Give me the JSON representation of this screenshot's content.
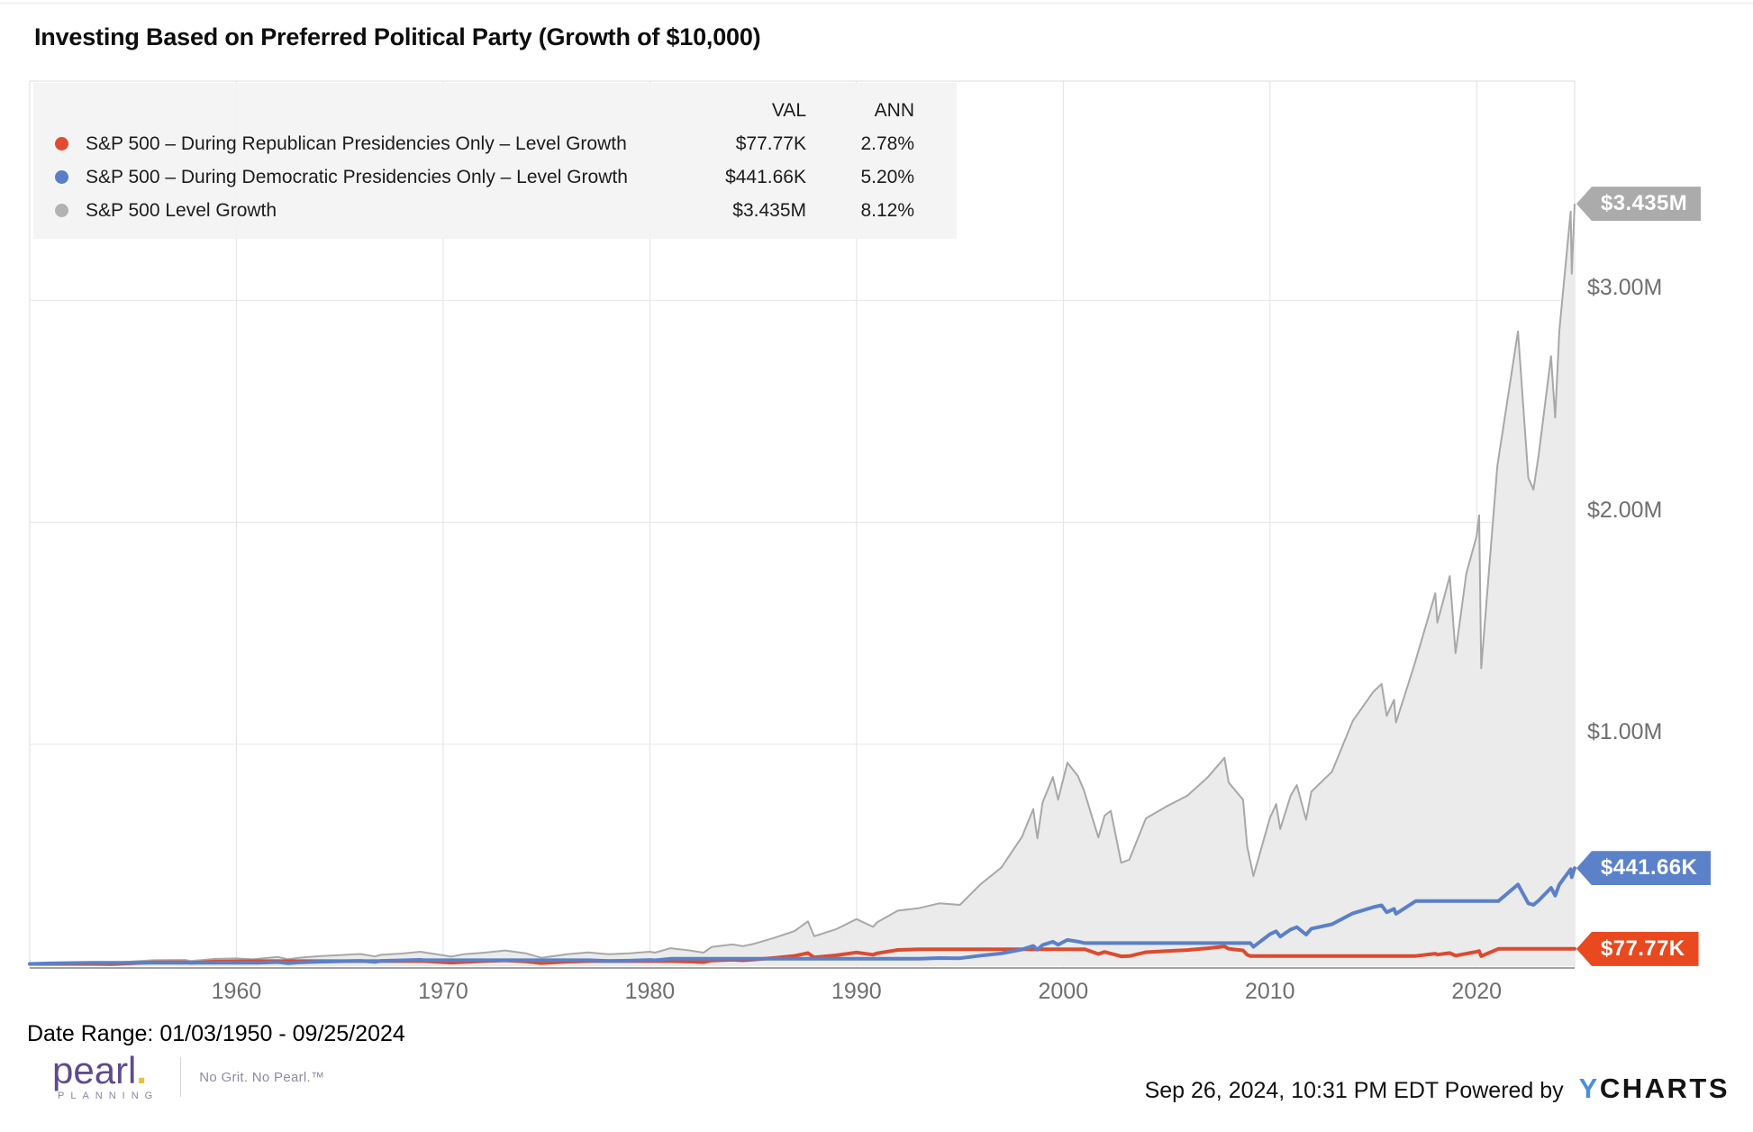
{
  "title": "Investing Based on Preferred Political Party (Growth of $10,000)",
  "legend": {
    "val_header": "VAL",
    "ann_header": "ANN",
    "rows": [
      {
        "id": "republican",
        "label": "S&P 500 – During Republican Presidencies Only – Level Growth",
        "val": "$77.77K",
        "ann": "2.78%",
        "color": "#e14b31"
      },
      {
        "id": "democratic",
        "label": "S&P 500 – During Democratic Presidencies Only – Level Growth",
        "val": "$441.66K",
        "ann": "5.20%",
        "color": "#5b7fc6"
      },
      {
        "id": "sp500_level",
        "label": "S&P 500 Level Growth",
        "val": "$3.435M",
        "ann": "8.12%",
        "color": "#b2b2b2"
      }
    ]
  },
  "chart_data": {
    "type": "area",
    "title": "Investing Based on Preferred Political Party (Growth of $10,000)",
    "unit": "US dollars, thousands (growth of $10,000 invested 01/03/1950)",
    "x_range": [
      1950.0,
      2024.74
    ],
    "x_ticks": [
      1960,
      1970,
      1980,
      1990,
      2000,
      2010,
      2020
    ],
    "y_range_thousands": [
      0,
      4000
    ],
    "y_ticks": [
      {
        "value": 1000,
        "label": "$1.00M"
      },
      {
        "value": 2000,
        "label": "$2.00M"
      },
      {
        "value": 3000,
        "label": "$3.00M"
      }
    ],
    "grid": true,
    "legend_position": "top-left",
    "series": [
      {
        "id": "sp500_level",
        "name": "S&P 500 Level Growth",
        "style": "area",
        "line_color": "#a8a8a8",
        "fill_color": "#ebebeb",
        "final_value": "$3.435M",
        "annualized": "8.12%",
        "points": [
          [
            1950,
            10
          ],
          [
            1951,
            12.6
          ],
          [
            1952,
            14.4
          ],
          [
            1953,
            15.6
          ],
          [
            1954,
            15
          ],
          [
            1955,
            21.6
          ],
          [
            1956,
            27
          ],
          [
            1957.5,
            28
          ],
          [
            1957.8,
            23.4
          ],
          [
            1959,
            33
          ],
          [
            1960,
            34.8
          ],
          [
            1960.8,
            31
          ],
          [
            1962,
            41.4
          ],
          [
            1962.5,
            31
          ],
          [
            1963,
            37.8
          ],
          [
            1964,
            45
          ],
          [
            1965,
            50
          ],
          [
            1966,
            55
          ],
          [
            1966.7,
            43.8
          ],
          [
            1967,
            51
          ],
          [
            1968,
            57
          ],
          [
            1968.9,
            64.8
          ],
          [
            1970.4,
            43.2
          ],
          [
            1971,
            54
          ],
          [
            1972,
            61
          ],
          [
            1973,
            70.8
          ],
          [
            1974,
            58
          ],
          [
            1974.75,
            37.8
          ],
          [
            1976,
            54
          ],
          [
            1977,
            62
          ],
          [
            1978,
            54
          ],
          [
            1979,
            57.6
          ],
          [
            1980,
            64.8
          ],
          [
            1980.25,
            61
          ],
          [
            1981,
            81
          ],
          [
            1982,
            70
          ],
          [
            1982.6,
            61
          ],
          [
            1983,
            87
          ],
          [
            1984,
            98
          ],
          [
            1984.5,
            90
          ],
          [
            1985,
            100
          ],
          [
            1986,
            127
          ],
          [
            1987,
            158
          ],
          [
            1987.65,
            202
          ],
          [
            1987.95,
            135
          ],
          [
            1989,
            166
          ],
          [
            1990,
            212
          ],
          [
            1990.8,
            177
          ],
          [
            1991,
            198
          ],
          [
            1992,
            250
          ],
          [
            1993,
            261
          ],
          [
            1994,
            283
          ],
          [
            1995,
            276
          ],
          [
            1996,
            369
          ],
          [
            1997,
            444
          ],
          [
            1998,
            582
          ],
          [
            1998.55,
            708
          ],
          [
            1998.75,
            576
          ],
          [
            1999,
            738
          ],
          [
            1999.5,
            852
          ],
          [
            1999.75,
            750
          ],
          [
            2000.2,
            917
          ],
          [
            2000.7,
            858
          ],
          [
            2001,
            792
          ],
          [
            2001.7,
            580
          ],
          [
            2002,
            678
          ],
          [
            2002.3,
            700
          ],
          [
            2002.8,
            466
          ],
          [
            2003.2,
            480
          ],
          [
            2004,
            666
          ],
          [
            2005,
            720
          ],
          [
            2006,
            768
          ],
          [
            2007,
            852
          ],
          [
            2007.8,
            939
          ],
          [
            2008,
            828
          ],
          [
            2008.7,
            750
          ],
          [
            2008.9,
            540
          ],
          [
            2009.2,
            406
          ],
          [
            2010,
            669
          ],
          [
            2010.3,
            730
          ],
          [
            2010.5,
            618
          ],
          [
            2011,
            768
          ],
          [
            2011.3,
            816
          ],
          [
            2011.75,
            660
          ],
          [
            2012,
            786
          ],
          [
            2013,
            876
          ],
          [
            2014,
            1104
          ],
          [
            2015,
            1236
          ],
          [
            2015.4,
            1272
          ],
          [
            2015.65,
            1128
          ],
          [
            2016,
            1200
          ],
          [
            2016.1,
            1098
          ],
          [
            2017,
            1362
          ],
          [
            2018,
            1680
          ],
          [
            2018.1,
            1548
          ],
          [
            2018.7,
            1758
          ],
          [
            2018.98,
            1410
          ],
          [
            2019.5,
            1770
          ],
          [
            2020,
            1938
          ],
          [
            2020.12,
            2032
          ],
          [
            2020.22,
            1342
          ],
          [
            2021,
            2254
          ],
          [
            2022,
            2860
          ],
          [
            2022.5,
            2200
          ],
          [
            2022.75,
            2147
          ],
          [
            2023,
            2304
          ],
          [
            2023.6,
            2748
          ],
          [
            2023.8,
            2472
          ],
          [
            2024,
            2862
          ],
          [
            2024.2,
            3060
          ],
          [
            2024.55,
            3400
          ],
          [
            2024.6,
            3120
          ],
          [
            2024.74,
            3435
          ]
        ]
      },
      {
        "id": "republican",
        "name": "S&P 500 – During Republican Presidencies Only – Level Growth",
        "style": "line",
        "line_color": "#dc4b2e",
        "final_value": "$77.77K",
        "annualized": "2.78%",
        "points": [
          [
            1950,
            10
          ],
          [
            1953.05,
            10
          ],
          [
            1954,
            9.5
          ],
          [
            1955,
            13.6
          ],
          [
            1956,
            17.1
          ],
          [
            1957.5,
            17.8
          ],
          [
            1957.8,
            14.8
          ],
          [
            1959,
            20.8
          ],
          [
            1960,
            22
          ],
          [
            1961.05,
            22.6
          ],
          [
            1969.05,
            22.6
          ],
          [
            1970.4,
            16
          ],
          [
            1972,
            22.6
          ],
          [
            1973,
            26.1
          ],
          [
            1974,
            21.5
          ],
          [
            1974.75,
            13.9
          ],
          [
            1976,
            19.9
          ],
          [
            1977.05,
            22.8
          ],
          [
            1981.05,
            22.8
          ],
          [
            1982,
            20.5
          ],
          [
            1982.6,
            17.9
          ],
          [
            1983,
            25.4
          ],
          [
            1984,
            28.8
          ],
          [
            1984.5,
            26.3
          ],
          [
            1985,
            29.3
          ],
          [
            1986,
            37
          ],
          [
            1987,
            46.3
          ],
          [
            1987.65,
            58.9
          ],
          [
            1987.95,
            39.5
          ],
          [
            1989,
            48.6
          ],
          [
            1990,
            61.9
          ],
          [
            1990.8,
            51.7
          ],
          [
            1991,
            57.9
          ],
          [
            1992,
            73.1
          ],
          [
            1993.05,
            76.3
          ],
          [
            2001.05,
            76.3
          ],
          [
            2001.7,
            54.9
          ],
          [
            2002,
            64.3
          ],
          [
            2002.8,
            44.1
          ],
          [
            2003.2,
            45.5
          ],
          [
            2004,
            63.1
          ],
          [
            2005,
            68.2
          ],
          [
            2006,
            72.8
          ],
          [
            2007,
            80.7
          ],
          [
            2007.8,
            89
          ],
          [
            2008,
            78.5
          ],
          [
            2008.7,
            71.1
          ],
          [
            2008.9,
            51.2
          ],
          [
            2009.05,
            45.8
          ],
          [
            2017.05,
            45.8
          ],
          [
            2018,
            56.5
          ],
          [
            2018.1,
            52
          ],
          [
            2018.7,
            59.1
          ],
          [
            2018.98,
            47.4
          ],
          [
            2020,
            65.1
          ],
          [
            2020.12,
            68.3
          ],
          [
            2020.22,
            45.1
          ],
          [
            2021.05,
            77.77
          ],
          [
            2024.74,
            77.77
          ]
        ]
      },
      {
        "id": "democratic",
        "name": "S&P 500 – During Democratic Presidencies Only – Level Growth",
        "style": "line",
        "line_color": "#5b80c8",
        "final_value": "$441.66K",
        "annualized": "5.20%",
        "points": [
          [
            1950,
            10
          ],
          [
            1951,
            12.6
          ],
          [
            1952,
            14.4
          ],
          [
            1953.05,
            15.6
          ],
          [
            1961.05,
            15.6
          ],
          [
            1962,
            18.1
          ],
          [
            1962.5,
            13.6
          ],
          [
            1963,
            16.5
          ],
          [
            1964,
            19.7
          ],
          [
            1965,
            22
          ],
          [
            1966,
            24.1
          ],
          [
            1966.7,
            19.1
          ],
          [
            1967,
            23.9
          ],
          [
            1968.9,
            28.3
          ],
          [
            1969.05,
            26.7
          ],
          [
            1977.05,
            26.7
          ],
          [
            1978,
            23.3
          ],
          [
            1979,
            24.9
          ],
          [
            1980,
            28
          ],
          [
            1980.25,
            26.4
          ],
          [
            1981.05,
            33.7
          ],
          [
            1993.05,
            33.7
          ],
          [
            1994,
            36.6
          ],
          [
            1995,
            35.7
          ],
          [
            1996,
            47.7
          ],
          [
            1997,
            57.3
          ],
          [
            1998,
            75.2
          ],
          [
            1998.55,
            91.4
          ],
          [
            1998.75,
            74.4
          ],
          [
            1999,
            95.3
          ],
          [
            1999.5,
            110
          ],
          [
            1999.75,
            96.8
          ],
          [
            2000.2,
            118.3
          ],
          [
            2000.7,
            110.8
          ],
          [
            2001.05,
            104
          ],
          [
            2009.05,
            104
          ],
          [
            2009.2,
            87.5
          ],
          [
            2010,
            144
          ],
          [
            2010.3,
            157
          ],
          [
            2010.5,
            133
          ],
          [
            2011,
            165
          ],
          [
            2011.3,
            176
          ],
          [
            2011.75,
            142
          ],
          [
            2012,
            169
          ],
          [
            2013,
            189
          ],
          [
            2014,
            238
          ],
          [
            2015,
            266
          ],
          [
            2015.4,
            274
          ],
          [
            2015.65,
            243
          ],
          [
            2016,
            258
          ],
          [
            2016.1,
            236
          ],
          [
            2017.05,
            293
          ],
          [
            2021.05,
            293
          ],
          [
            2022,
            368
          ],
          [
            2022.5,
            283
          ],
          [
            2022.75,
            276
          ],
          [
            2023,
            296
          ],
          [
            2023.6,
            353
          ],
          [
            2023.8,
            318
          ],
          [
            2024,
            368
          ],
          [
            2024.2,
            393
          ],
          [
            2024.55,
            437
          ],
          [
            2024.6,
            401
          ],
          [
            2024.74,
            441.66
          ]
        ]
      }
    ],
    "end_labels": [
      {
        "series": "sp500_level",
        "text": "$3.435M",
        "value": 3435,
        "color": "#ababab"
      },
      {
        "series": "democratic",
        "text": "$441.66K",
        "value": 441.66,
        "color": "#5b82c9"
      },
      {
        "series": "republican",
        "text": "$77.77K",
        "value": 77.77,
        "color": "#e8491f"
      }
    ]
  },
  "footer": {
    "date_range": "Date Range: 01/03/1950 - 09/25/2024",
    "pearl": {
      "word": "pearl",
      "dot": ".",
      "sub": "PLANNING",
      "tagline": "No Grit. No Pearl.™"
    },
    "timestamp": "Sep 26, 2024, 10:31 PM EDT",
    "powered_by": "Powered by",
    "ycharts_y": "Y",
    "ycharts_rest": "CHARTS"
  }
}
